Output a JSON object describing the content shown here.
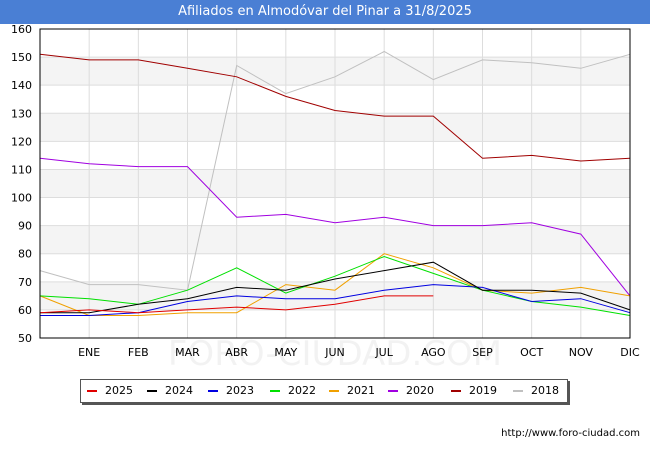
{
  "header": {
    "title": "Afiliados en Almodóvar del Pinar a 31/8/2025"
  },
  "source": "http://www.foro-ciudad.com",
  "watermark": "FORO-CIUDAD.COM",
  "chart_data": {
    "type": "line",
    "title": "Afiliados en Almodóvar del Pinar a 31/8/2025",
    "xlabel": "",
    "ylabel": "",
    "ylim": [
      50,
      160
    ],
    "yticks": [
      50,
      60,
      70,
      80,
      90,
      100,
      110,
      120,
      130,
      140,
      150,
      160
    ],
    "categories": [
      "",
      "ENE",
      "FEB",
      "MAR",
      "ABR",
      "MAY",
      "JUN",
      "JUL",
      "AGO",
      "SEP",
      "OCT",
      "NOV",
      "DIC"
    ],
    "grid": true,
    "legend_position": "bottom",
    "series": [
      {
        "name": "2025",
        "color": "#e00000",
        "values": [
          59,
          60,
          59,
          60,
          61,
          60,
          62,
          65,
          65,
          null,
          null,
          null,
          null
        ]
      },
      {
        "name": "2024",
        "color": "#000000",
        "values": [
          59,
          59,
          62,
          64,
          68,
          67,
          71,
          74,
          77,
          67,
          67,
          66,
          60
        ]
      },
      {
        "name": "2023",
        "color": "#0000e0",
        "values": [
          58,
          58,
          59,
          63,
          65,
          64,
          64,
          67,
          69,
          68,
          63,
          64,
          59
        ]
      },
      {
        "name": "2022",
        "color": "#00e000",
        "values": [
          65,
          64,
          62,
          67,
          75,
          66,
          72,
          79,
          73,
          67,
          63,
          61,
          58
        ]
      },
      {
        "name": "2021",
        "color": "#f0a000",
        "values": [
          65,
          58,
          58,
          59,
          59,
          69,
          67,
          80,
          75,
          67,
          66,
          68,
          65
        ]
      },
      {
        "name": "2020",
        "color": "#a000e0",
        "values": [
          114,
          112,
          111,
          111,
          93,
          94,
          91,
          93,
          90,
          90,
          91,
          87,
          65
        ]
      },
      {
        "name": "2019",
        "color": "#a00000",
        "values": [
          151,
          149,
          149,
          146,
          143,
          136,
          131,
          129,
          129,
          114,
          115,
          113,
          114
        ]
      },
      {
        "name": "2018",
        "color": "#c0c0c0",
        "values": [
          74,
          69,
          69,
          67,
          147,
          137,
          143,
          152,
          142,
          149,
          148,
          146,
          151
        ]
      }
    ]
  }
}
